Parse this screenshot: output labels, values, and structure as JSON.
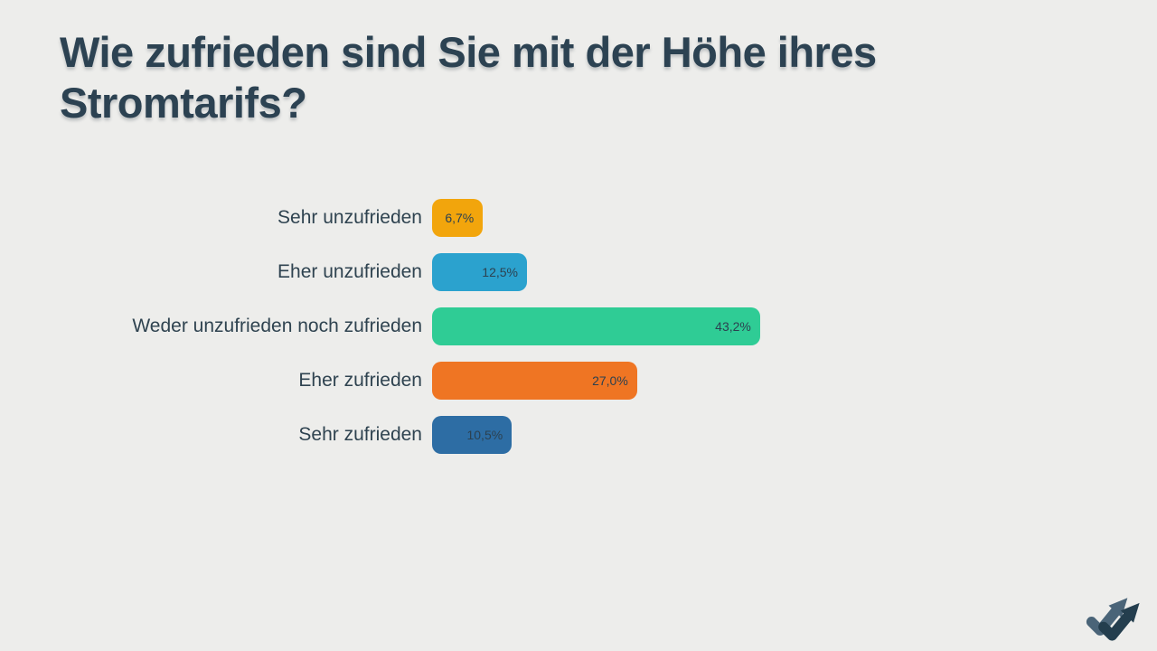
{
  "page": {
    "background_color": "#EDEDEB",
    "title": "Wie zufrieden sind Sie mit der Höhe ihres Stromtarifs?",
    "title_color": "#2C4252"
  },
  "chart_data": {
    "type": "bar",
    "orientation": "horizontal",
    "title": "Wie zufrieden sind Sie mit der Höhe ihres Stromtarifs?",
    "categories": [
      "Sehr unzufrieden",
      "Eher unzufrieden",
      "Weder unzufrieden noch zufrieden",
      "Eher zufrieden",
      "Sehr zufrieden"
    ],
    "values": [
      6.7,
      12.5,
      43.2,
      27.0,
      10.5
    ],
    "value_labels": [
      "6,7%",
      "12,5%",
      "43,2%",
      "27,0%",
      "10,5%"
    ],
    "bar_colors": [
      "#F2A50C",
      "#2BA2CE",
      "#2FCC95",
      "#EF7523",
      "#2D6DA4"
    ],
    "unit": "percent",
    "xlim": [
      0,
      50
    ],
    "grid": false,
    "legend": false,
    "value_label_position": "inside-right",
    "label_text_color": "#2F4350",
    "value_text_color": "#2C4150"
  },
  "logo": {
    "name": "double-check-arrow-logo",
    "color_front": "#243E4E",
    "color_back": "#4A6478"
  }
}
